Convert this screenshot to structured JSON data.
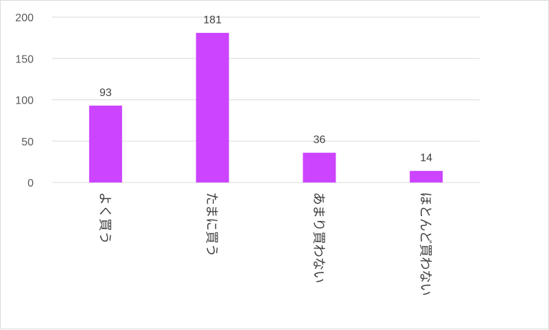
{
  "chart_data": {
    "type": "bar",
    "categories": [
      "よく買う",
      "たまに買う",
      "あまり買わない",
      "ほとんど買わない"
    ],
    "values": [
      93,
      181,
      36,
      14
    ],
    "title": "",
    "xlabel": "",
    "ylabel": "",
    "ylim": [
      0,
      200
    ],
    "yticks": [
      0,
      50,
      100,
      150,
      200
    ],
    "grid": true,
    "legend": "none",
    "data_labels": true,
    "bar_color": "#cc44ff"
  }
}
